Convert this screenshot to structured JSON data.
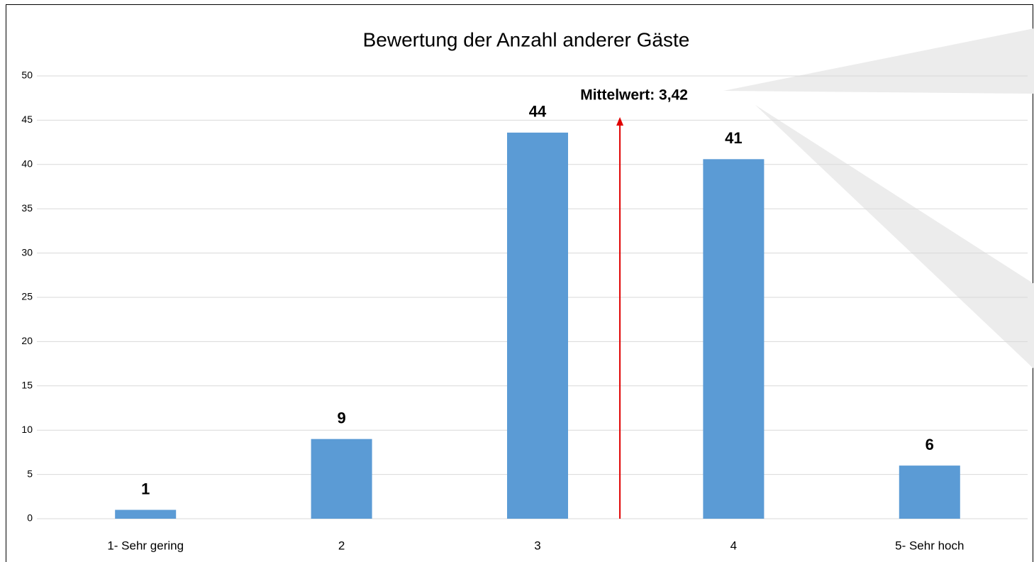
{
  "chart_data": {
    "type": "bar",
    "title": "Bewertung der Anzahl anderer Gäste",
    "categories": [
      "1- Sehr gering",
      "2",
      "3",
      "4",
      "5- Sehr hoch"
    ],
    "values": [
      1,
      9,
      43.6,
      40.6,
      6
    ],
    "value_labels": [
      "1",
      "9",
      "44",
      "41",
      "6"
    ],
    "color": "#5b9bd5",
    "ylim": [
      0,
      50
    ],
    "yticks": [
      0,
      5,
      10,
      15,
      20,
      25,
      30,
      35,
      40,
      45,
      50
    ],
    "grid": true,
    "annotation": {
      "text": "Mittelwert: 3,42",
      "x": 3.42,
      "color": "#e00000"
    }
  }
}
